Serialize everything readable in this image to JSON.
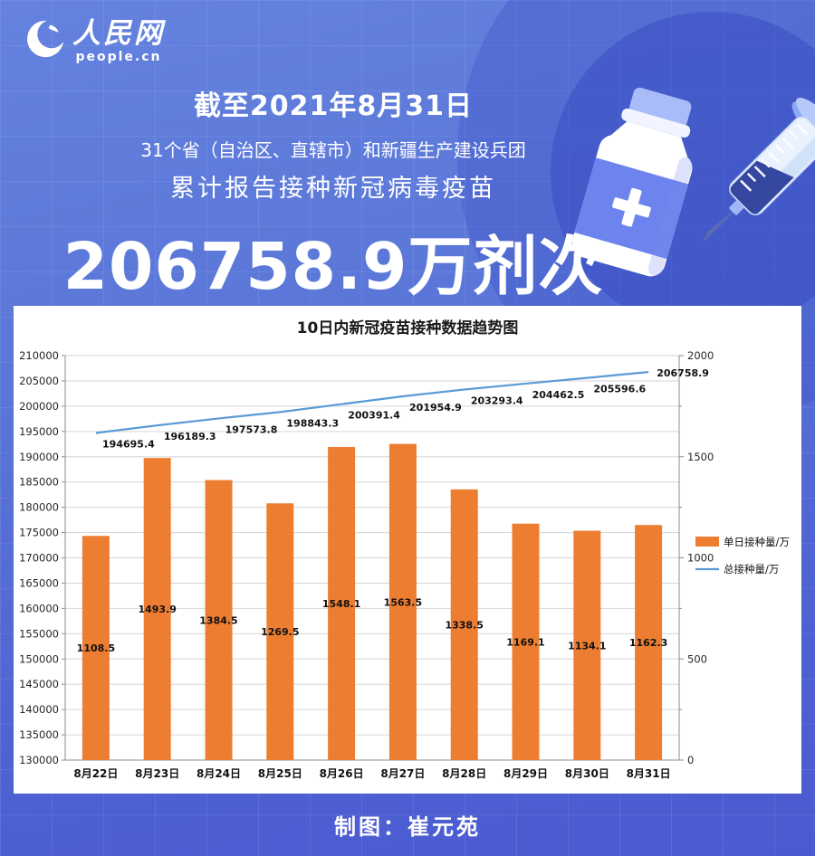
{
  "brand": {
    "logo_cn": "人民网",
    "logo_en": "people.cn"
  },
  "header": {
    "date_line": "截至2021年8月31日",
    "scope_line": "31个省（自治区、直辖市）和新疆生产建设兵团",
    "subject_line": "累计报告接种新冠病毒疫苗",
    "headline_number": "206758.9万剂次"
  },
  "footer": {
    "credit": "制图：崔元苑"
  },
  "colors": {
    "bar": "#ED7D31",
    "line": "#5B9BD5",
    "background_top": "#6482de",
    "background_bottom": "#4b5ad0",
    "panel": "#ffffff"
  },
  "chart_data": {
    "type": "bar",
    "subtype": "bar+line combo",
    "title": "10日内新冠疫苗接种数据趋势图",
    "categories": [
      "8月22日",
      "8月23日",
      "8月24日",
      "8月25日",
      "8月26日",
      "8月27日",
      "8月28日",
      "8月29日",
      "8月30日",
      "8月31日"
    ],
    "series": [
      {
        "name": "单日接种量/万",
        "type": "bar",
        "axis": "right",
        "color": "#ED7D31",
        "values": [
          1108.5,
          1493.9,
          1384.5,
          1269.5,
          1548.1,
          1563.5,
          1338.5,
          1169.1,
          1134.1,
          1162.3
        ]
      },
      {
        "name": "总接种量/万",
        "type": "line",
        "axis": "left",
        "color": "#5B9BD5",
        "values": [
          194695.4,
          196189.3,
          197573.8,
          198843.3,
          200391.4,
          201954.9,
          203293.4,
          204462.5,
          205596.6,
          206758.9
        ]
      }
    ],
    "left_axis": {
      "min": 130000,
      "max": 210000,
      "step": 5000
    },
    "right_axis": {
      "min": 0,
      "max": 2000,
      "step": 500
    },
    "legend_position": "right",
    "grid": true
  }
}
